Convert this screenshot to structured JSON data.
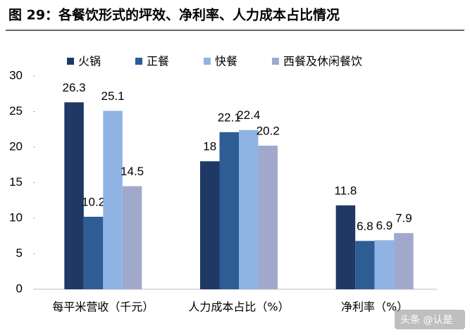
{
  "chart_data": {
    "type": "bar",
    "title": "图 29：各餐饮形式的坪效、净利率、人力成本占比情况",
    "categories": [
      "每平米营收（千元）",
      "人力成本占比（%）",
      "净利率（%）"
    ],
    "series": [
      {
        "name": "火锅",
        "color": "#1f3864",
        "values": [
          26.3,
          18,
          11.8
        ]
      },
      {
        "name": "正餐",
        "color": "#2e5c94",
        "values": [
          10.2,
          22.1,
          6.8
        ]
      },
      {
        "name": "快餐",
        "color": "#8fb4e3",
        "values": [
          25.1,
          22.4,
          6.9
        ]
      },
      {
        "name": "西餐及休闲餐饮",
        "color": "#a0a8cc",
        "values": [
          14.5,
          20.2,
          7.9
        ]
      }
    ],
    "ylim": [
      0,
      30
    ],
    "yticks": [
      0,
      5,
      10,
      15,
      20,
      25,
      30
    ],
    "grid": false,
    "legend": "top",
    "watermark": "头条 @认是"
  }
}
